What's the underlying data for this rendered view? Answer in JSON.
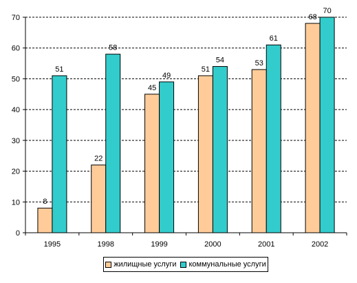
{
  "chart_data": {
    "type": "bar",
    "categories": [
      "1995",
      "1998",
      "1999",
      "2000",
      "2001",
      "2002"
    ],
    "series": [
      {
        "name": "жилищные услуги",
        "values": [
          8,
          22,
          45,
          51,
          53,
          68
        ],
        "color": "#FFCC99"
      },
      {
        "name": "коммунальные услуги",
        "values": [
          51,
          58,
          49,
          54,
          61,
          70
        ],
        "color": "#33CCCC"
      }
    ],
    "yticks": [
      0,
      10,
      20,
      30,
      40,
      50,
      60,
      70
    ],
    "ylim": [
      0,
      70
    ],
    "grid": "dashed horizontal",
    "legend_position": "bottom",
    "data_labels": true
  }
}
